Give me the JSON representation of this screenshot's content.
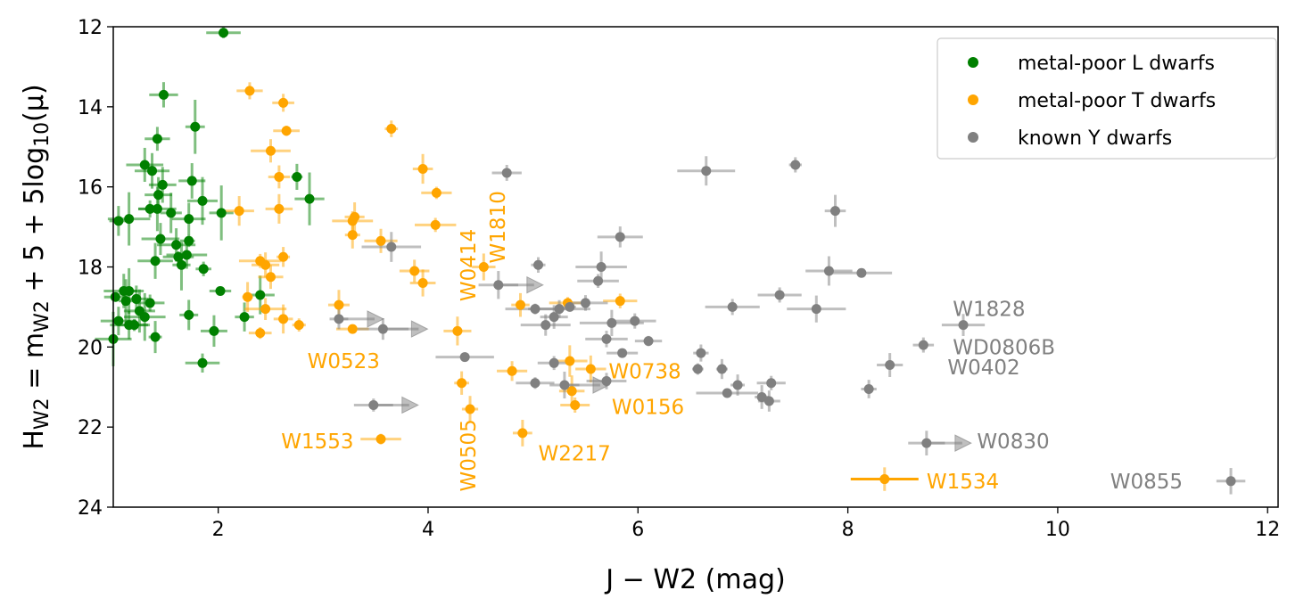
{
  "chart_data": {
    "type": "scatter",
    "xlabel": "J − W2 (mag)",
    "ylabel": "H_W2 = m_W2 + 5 + 5log10(μ)",
    "ylabel_parts": {
      "h": "H",
      "h_sub": "W2",
      "eq": " = m",
      "m_sub": "W2",
      "rest": " + 5 + 5log",
      "log_sub": "10",
      "mu": "(μ)"
    },
    "xlim": [
      1.0,
      12.1
    ],
    "ylim": [
      24,
      12
    ],
    "y_inverted": true,
    "xticks": [
      2,
      4,
      6,
      8,
      10,
      12
    ],
    "yticks": [
      12,
      14,
      16,
      18,
      20,
      22,
      24
    ],
    "grid": false,
    "legend_placement": "top-right",
    "series": [
      {
        "name": "metal-poor L dwarfs",
        "color": "#008000",
        "points": [
          {
            "x": 2.05,
            "y": 12.15
          },
          {
            "x": 1.48,
            "y": 13.7
          },
          {
            "x": 1.42,
            "y": 14.8
          },
          {
            "x": 1.78,
            "y": 14.5
          },
          {
            "x": 1.3,
            "y": 15.45
          },
          {
            "x": 1.37,
            "y": 15.6
          },
          {
            "x": 1.75,
            "y": 15.85
          },
          {
            "x": 1.47,
            "y": 15.95
          },
          {
            "x": 1.43,
            "y": 16.2
          },
          {
            "x": 2.75,
            "y": 15.75
          },
          {
            "x": 2.87,
            "y": 16.3
          },
          {
            "x": 1.85,
            "y": 16.35
          },
          {
            "x": 1.35,
            "y": 16.55
          },
          {
            "x": 1.42,
            "y": 16.55
          },
          {
            "x": 1.55,
            "y": 16.65
          },
          {
            "x": 2.03,
            "y": 16.65
          },
          {
            "x": 1.05,
            "y": 16.85
          },
          {
            "x": 1.15,
            "y": 16.8
          },
          {
            "x": 1.72,
            "y": 16.8
          },
          {
            "x": 1.6,
            "y": 17.45
          },
          {
            "x": 1.45,
            "y": 17.3
          },
          {
            "x": 1.72,
            "y": 17.35
          },
          {
            "x": 1.62,
            "y": 17.75
          },
          {
            "x": 1.7,
            "y": 17.7
          },
          {
            "x": 1.65,
            "y": 17.95
          },
          {
            "x": 1.4,
            "y": 17.85
          },
          {
            "x": 1.86,
            "y": 18.05
          },
          {
            "x": 1.1,
            "y": 18.6
          },
          {
            "x": 1.15,
            "y": 18.6
          },
          {
            "x": 2.02,
            "y": 18.6
          },
          {
            "x": 2.4,
            "y": 18.7
          },
          {
            "x": 1.02,
            "y": 18.75
          },
          {
            "x": 1.22,
            "y": 18.8
          },
          {
            "x": 1.35,
            "y": 18.9
          },
          {
            "x": 1.12,
            "y": 18.85
          },
          {
            "x": 1.25,
            "y": 19.1
          },
          {
            "x": 1.3,
            "y": 19.25
          },
          {
            "x": 1.72,
            "y": 19.2
          },
          {
            "x": 2.25,
            "y": 19.25
          },
          {
            "x": 1.05,
            "y": 19.35
          },
          {
            "x": 1.15,
            "y": 19.45
          },
          {
            "x": 1.2,
            "y": 19.45
          },
          {
            "x": 1.4,
            "y": 19.75
          },
          {
            "x": 1.96,
            "y": 19.6
          },
          {
            "x": 1.0,
            "y": 19.8
          },
          {
            "x": 1.85,
            "y": 20.4
          }
        ]
      },
      {
        "name": "metal-poor T dwarfs",
        "color": "#ffa500",
        "points": [
          {
            "x": 2.3,
            "y": 13.6
          },
          {
            "x": 2.62,
            "y": 13.9
          },
          {
            "x": 2.65,
            "y": 14.6
          },
          {
            "x": 3.65,
            "y": 14.55
          },
          {
            "x": 2.5,
            "y": 15.1
          },
          {
            "x": 3.95,
            "y": 15.55
          },
          {
            "x": 2.58,
            "y": 15.75
          },
          {
            "x": 4.08,
            "y": 16.15
          },
          {
            "x": 2.2,
            "y": 16.6
          },
          {
            "x": 2.58,
            "y": 16.55
          },
          {
            "x": 3.3,
            "y": 16.75
          },
          {
            "x": 3.28,
            "y": 16.85
          },
          {
            "x": 4.07,
            "y": 16.95
          },
          {
            "x": 3.28,
            "y": 17.2
          },
          {
            "x": 3.55,
            "y": 17.35
          },
          {
            "x": 2.62,
            "y": 17.75
          },
          {
            "x": 2.4,
            "y": 17.85
          },
          {
            "x": 2.45,
            "y": 17.95
          },
          {
            "x": 4.53,
            "y": 18.0
          },
          {
            "x": 3.87,
            "y": 18.1
          },
          {
            "x": 2.5,
            "y": 18.25
          },
          {
            "x": 3.95,
            "y": 18.4
          },
          {
            "x": 2.28,
            "y": 18.75
          },
          {
            "x": 5.83,
            "y": 18.85
          },
          {
            "x": 3.15,
            "y": 18.95
          },
          {
            "x": 4.88,
            "y": 18.95
          },
          {
            "x": 5.33,
            "y": 18.9
          },
          {
            "x": 2.45,
            "y": 19.05
          },
          {
            "x": 2.62,
            "y": 19.3
          },
          {
            "x": 2.77,
            "y": 19.45
          },
          {
            "x": 4.28,
            "y": 19.6
          },
          {
            "x": 2.4,
            "y": 19.65
          },
          {
            "x": 3.28,
            "y": 19.55
          },
          {
            "x": 5.35,
            "y": 20.35
          },
          {
            "x": 5.55,
            "y": 20.55
          },
          {
            "x": 4.8,
            "y": 20.6
          },
          {
            "x": 4.32,
            "y": 20.9
          },
          {
            "x": 5.37,
            "y": 21.1
          },
          {
            "x": 5.4,
            "y": 21.45
          },
          {
            "x": 4.4,
            "y": 21.55
          },
          {
            "x": 4.9,
            "y": 22.15
          },
          {
            "x": 3.55,
            "y": 22.3
          },
          {
            "x": 8.35,
            "y": 23.3
          }
        ]
      },
      {
        "name": "known Y dwarfs",
        "color": "#808080",
        "points": [
          {
            "x": 7.5,
            "y": 15.45
          },
          {
            "x": 4.75,
            "y": 15.65
          },
          {
            "x": 6.65,
            "y": 15.6
          },
          {
            "x": 7.88,
            "y": 16.6
          },
          {
            "x": 3.65,
            "y": 17.5
          },
          {
            "x": 5.83,
            "y": 17.25
          },
          {
            "x": 5.65,
            "y": 18.0
          },
          {
            "x": 5.05,
            "y": 17.95
          },
          {
            "x": 7.82,
            "y": 18.1
          },
          {
            "x": 8.13,
            "y": 18.15
          },
          {
            "x": 5.62,
            "y": 18.35
          },
          {
            "x": 4.67,
            "y": 18.45
          },
          {
            "x": 5.5,
            "y": 18.9
          },
          {
            "x": 7.35,
            "y": 18.7
          },
          {
            "x": 5.25,
            "y": 19.05
          },
          {
            "x": 5.02,
            "y": 19.05
          },
          {
            "x": 5.35,
            "y": 19.0
          },
          {
            "x": 6.9,
            "y": 19.0
          },
          {
            "x": 7.7,
            "y": 19.05
          },
          {
            "x": 5.2,
            "y": 19.25
          },
          {
            "x": 3.15,
            "y": 19.3
          },
          {
            "x": 5.75,
            "y": 19.4
          },
          {
            "x": 5.97,
            "y": 19.35
          },
          {
            "x": 5.12,
            "y": 19.45
          },
          {
            "x": 9.1,
            "y": 19.45
          },
          {
            "x": 3.57,
            "y": 19.55
          },
          {
            "x": 5.7,
            "y": 19.8
          },
          {
            "x": 6.1,
            "y": 19.85
          },
          {
            "x": 8.72,
            "y": 19.95
          },
          {
            "x": 6.6,
            "y": 20.15
          },
          {
            "x": 5.85,
            "y": 20.15
          },
          {
            "x": 4.35,
            "y": 20.25
          },
          {
            "x": 5.2,
            "y": 20.4
          },
          {
            "x": 8.4,
            "y": 20.45
          },
          {
            "x": 6.57,
            "y": 20.55
          },
          {
            "x": 6.8,
            "y": 20.55
          },
          {
            "x": 5.7,
            "y": 20.85
          },
          {
            "x": 5.02,
            "y": 20.9
          },
          {
            "x": 5.3,
            "y": 20.95
          },
          {
            "x": 7.27,
            "y": 20.9
          },
          {
            "x": 6.95,
            "y": 20.95
          },
          {
            "x": 8.2,
            "y": 21.05
          },
          {
            "x": 6.85,
            "y": 21.15
          },
          {
            "x": 7.18,
            "y": 21.25
          },
          {
            "x": 7.25,
            "y": 21.35
          },
          {
            "x": 3.48,
            "y": 21.45
          },
          {
            "x": 8.75,
            "y": 22.4
          },
          {
            "x": 11.65,
            "y": 23.35
          }
        ]
      }
    ],
    "annotations": [
      {
        "text": "W1810",
        "color": "#ffa500",
        "x": 4.73,
        "y": 16.1,
        "rotate": -90
      },
      {
        "text": "W0414",
        "color": "#ffa500",
        "x": 4.45,
        "y": 17.05,
        "rotate": -90
      },
      {
        "text": "W0523",
        "color": "#ffa500",
        "x": 2.85,
        "y": 20.35,
        "rotate": 0
      },
      {
        "text": "W0738",
        "color": "#ffa500",
        "x": 5.72,
        "y": 20.6,
        "rotate": 0
      },
      {
        "text": "W0156",
        "color": "#ffa500",
        "x": 5.75,
        "y": 21.5,
        "rotate": 0
      },
      {
        "text": "W1553",
        "color": "#ffa500",
        "x": 2.6,
        "y": 22.35,
        "rotate": 0
      },
      {
        "text": "W2217",
        "color": "#ffa500",
        "x": 5.05,
        "y": 22.65,
        "rotate": 0
      },
      {
        "text": "W0505",
        "color": "#ffa500",
        "x": 4.45,
        "y": 21.8,
        "rotate": -90
      },
      {
        "text": "W1534",
        "color": "#ffa500",
        "x": 8.75,
        "y": 23.35,
        "rotate": 0
      },
      {
        "text": "W1828",
        "color": "#808080",
        "x": 9.0,
        "y": 19.05,
        "rotate": 0
      },
      {
        "text": "WD0806B",
        "color": "#808080",
        "x": 9.0,
        "y": 20.0,
        "rotate": 0
      },
      {
        "text": "W0402",
        "color": "#808080",
        "x": 8.95,
        "y": 20.5,
        "rotate": 0
      },
      {
        "text": "W0830",
        "color": "#808080",
        "x": 9.23,
        "y": 22.35,
        "rotate": 0
      },
      {
        "text": "W0855",
        "color": "#808080",
        "x": 10.5,
        "y": 23.35,
        "rotate": 0
      }
    ]
  }
}
